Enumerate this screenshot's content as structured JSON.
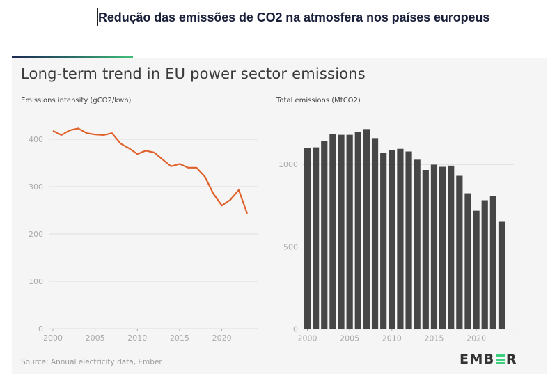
{
  "document": {
    "title": "Redução das emissões de CO2 na atmosfera nos países europeus"
  },
  "card": {
    "title": "Long-term trend in EU power sector emissions",
    "source": "Source: Annual electricity data, Ember",
    "logo": {
      "prefix": "EMB",
      "suffix": "R",
      "accent_color": "#3ccf7f",
      "stylized_letter": "E"
    }
  },
  "colors": {
    "line": "#e0602a",
    "bars": "#464646",
    "grid": "#dddddd",
    "accent_gradient": [
      "#1c2a52",
      "#3fbf78"
    ]
  },
  "chart_data": [
    {
      "type": "line",
      "title": "Emissions intensity (gCO2/kwh)",
      "xlabel": "",
      "ylabel": "Emissions intensity (gCO2/kwh)",
      "x": [
        2000,
        2001,
        2002,
        2003,
        2004,
        2005,
        2006,
        2007,
        2008,
        2009,
        2010,
        2011,
        2012,
        2013,
        2014,
        2015,
        2016,
        2017,
        2018,
        2019,
        2020,
        2021,
        2022,
        2023
      ],
      "series": [
        {
          "name": "Emissions intensity",
          "values": [
            418,
            409,
            419,
            423,
            413,
            410,
            409,
            413,
            391,
            381,
            369,
            376,
            372,
            357,
            343,
            348,
            340,
            340,
            321,
            285,
            260,
            272,
            293,
            243
          ]
        }
      ],
      "xticks": [
        "2000",
        "2005",
        "2010",
        "2015",
        "2020"
      ],
      "yticks": [
        "0",
        "100",
        "200",
        "300",
        "400"
      ],
      "xlim": [
        2000,
        2025
      ],
      "ylim": [
        0,
        430
      ],
      "grid": true,
      "legend": "none"
    },
    {
      "type": "bar",
      "title": "Total emissions (MtCO2)",
      "xlabel": "",
      "ylabel": "Total emissions (MtCO2)",
      "categories": [
        2000,
        2001,
        2002,
        2003,
        2004,
        2005,
        2006,
        2007,
        2008,
        2009,
        2010,
        2011,
        2012,
        2013,
        2014,
        2015,
        2016,
        2017,
        2018,
        2019,
        2020,
        2021,
        2022,
        2023
      ],
      "values": [
        1100,
        1104,
        1143,
        1185,
        1180,
        1180,
        1198,
        1215,
        1160,
        1072,
        1086,
        1095,
        1079,
        1029,
        967,
        999,
        986,
        993,
        931,
        825,
        719,
        783,
        808,
        652
      ],
      "xticks": [
        "2000",
        "2005",
        "2010",
        "2015",
        "2020"
      ],
      "yticks": [
        "0",
        "500",
        "1000"
      ],
      "xlim": [
        2000,
        2025
      ],
      "ylim": [
        0,
        1250
      ],
      "grid": true,
      "legend": "none"
    }
  ]
}
